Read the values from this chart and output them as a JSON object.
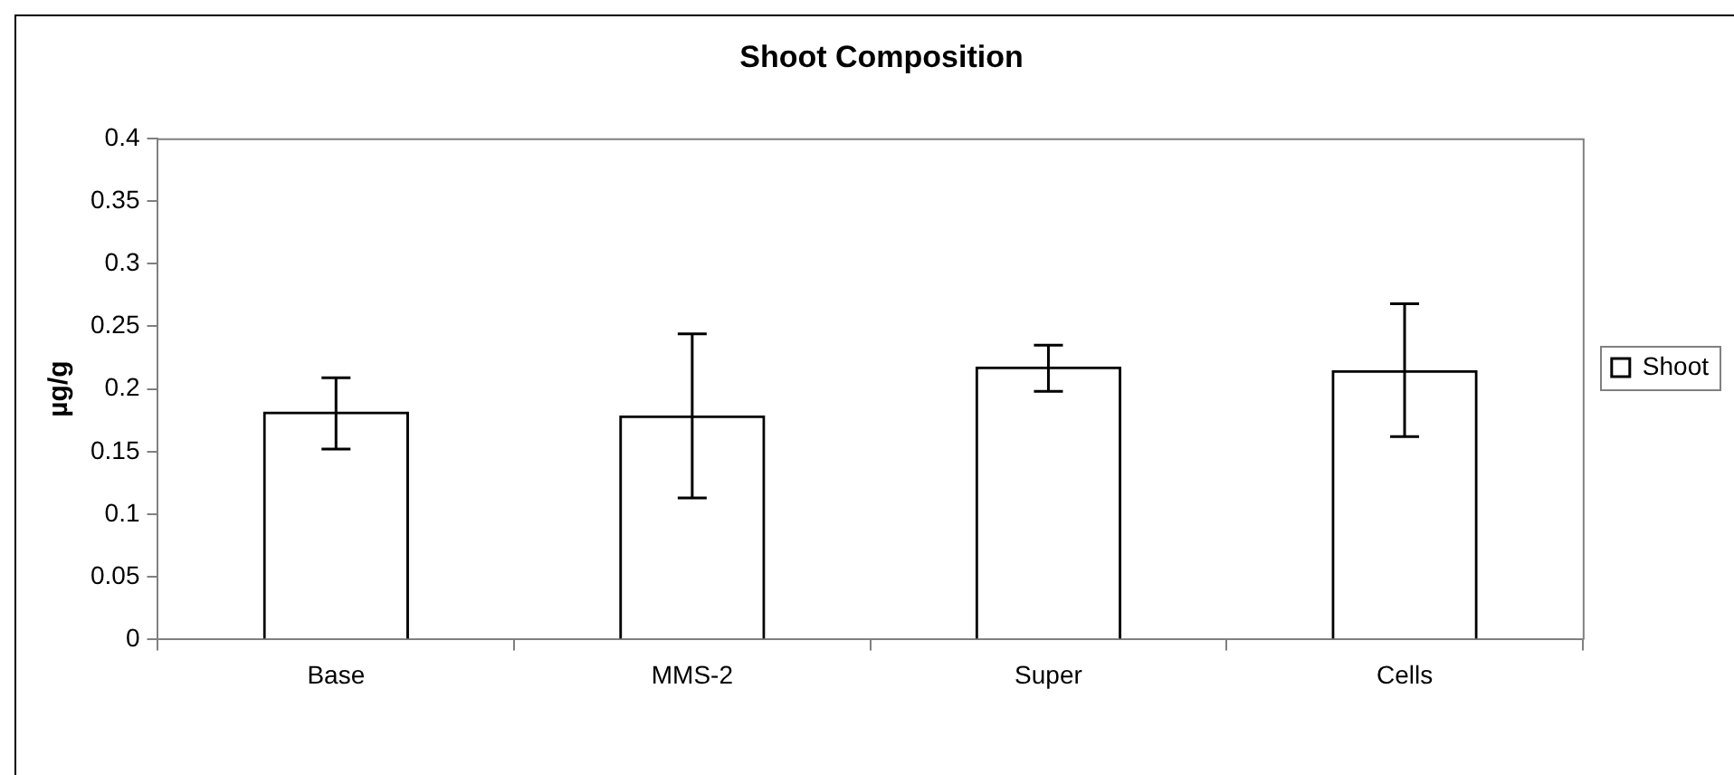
{
  "chart_data": {
    "type": "bar",
    "title": "Shoot Composition",
    "ylabel": "µg/g",
    "categories": [
      "Base",
      "MMS-2",
      "Super",
      "Cells"
    ],
    "series": [
      {
        "name": "Shoot",
        "color": "#000000",
        "values": [
          0.182,
          0.179,
          0.218,
          0.215
        ],
        "errors": [
          [
            0.152,
            0.209
          ],
          [
            0.113,
            0.244
          ],
          [
            0.198,
            0.235
          ],
          [
            0.162,
            0.268
          ]
        ]
      }
    ],
    "ylim": [
      0,
      0.4
    ],
    "yticks": [
      0,
      0.05,
      0.1,
      0.15,
      0.2,
      0.25,
      0.3,
      0.35,
      0.4
    ],
    "grid": false,
    "legend": "right"
  }
}
